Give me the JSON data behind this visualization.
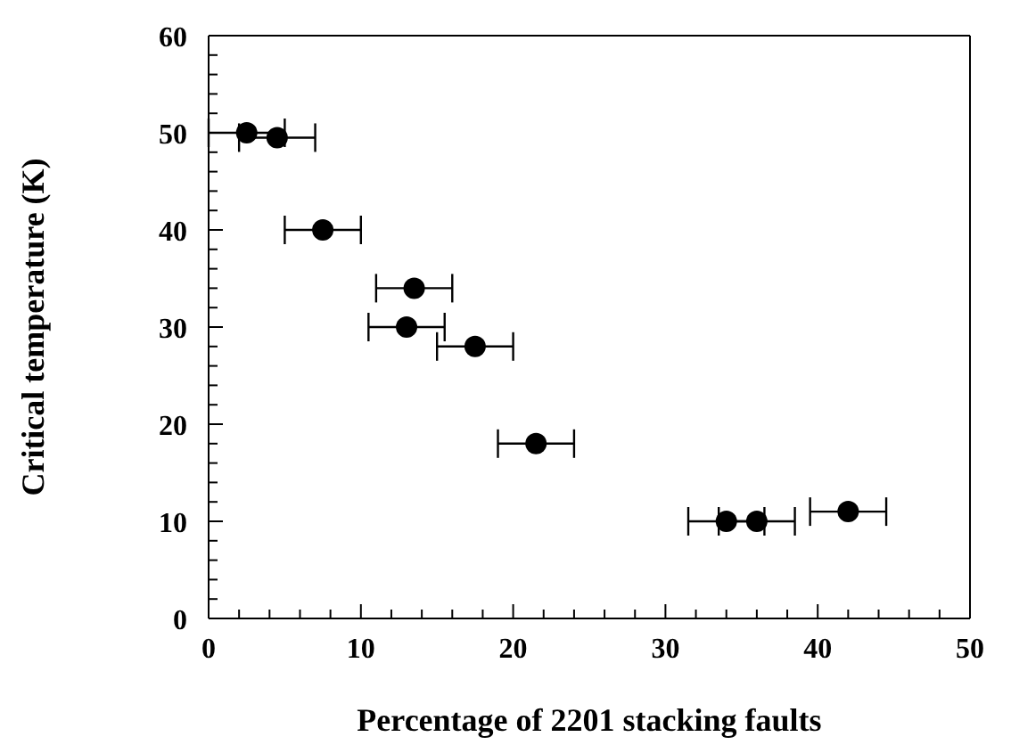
{
  "chart_data": {
    "type": "scatter",
    "xlabel": "Percentage of 2201 stacking faults",
    "ylabel": "Critical temperature (K)",
    "x": [
      2.5,
      4.5,
      7.5,
      13.5,
      13,
      17.5,
      21.5,
      34,
      36,
      42
    ],
    "values": [
      50,
      49.5,
      40,
      34,
      30,
      28,
      18,
      10,
      10,
      11
    ],
    "xerrors": [
      2.5,
      2.5,
      2.5,
      2.5,
      2.5,
      2.5,
      2.5,
      2.5,
      2.5,
      2.5
    ],
    "color": "#000000",
    "marker": "circle",
    "xlim": [
      0,
      50
    ],
    "ylim": [
      0,
      60
    ],
    "xticks": [
      0,
      {
        "value": 2,
        "label": null
      },
      {
        "value": 4,
        "label": null
      },
      {
        "value": 6,
        "label": null
      },
      {
        "value": 8,
        "label": null
      },
      10,
      {
        "value": 12,
        "label": null
      },
      {
        "value": 14,
        "label": null
      },
      {
        "value": 16,
        "label": null
      },
      {
        "value": 18,
        "label": null
      },
      20,
      {
        "value": 22,
        "label": null
      },
      {
        "value": 24,
        "label": null
      },
      {
        "value": 26,
        "label": null
      },
      {
        "value": 28,
        "label": null
      },
      30,
      {
        "value": 32,
        "label": null
      },
      {
        "value": 34,
        "label": null
      },
      {
        "value": 36,
        "label": null
      },
      {
        "value": 38,
        "label": null
      },
      40,
      {
        "value": 42,
        "label": null
      },
      {
        "value": 44,
        "label": null
      },
      {
        "value": 46,
        "label": null
      },
      {
        "value": 48,
        "label": null
      },
      50
    ],
    "yticks": [
      0,
      {
        "value": 2,
        "label": null
      },
      {
        "value": 4,
        "label": null
      },
      {
        "value": 6,
        "label": null
      },
      {
        "value": 8,
        "label": null
      },
      10,
      {
        "value": 12,
        "label": null
      },
      {
        "value": 14,
        "label": null
      },
      {
        "value": 16,
        "label": null
      },
      {
        "value": 18,
        "label": null
      },
      20,
      {
        "value": 22,
        "label": null
      },
      {
        "value": 24,
        "label": null
      },
      {
        "value": 26,
        "label": null
      },
      {
        "value": 28,
        "label": null
      },
      30,
      {
        "value": 32,
        "label": null
      },
      {
        "value": 34,
        "label": null
      },
      {
        "value": 36,
        "label": null
      },
      {
        "value": 38,
        "label": null
      },
      40,
      {
        "value": 42,
        "label": null
      },
      {
        "value": 44,
        "label": null
      },
      {
        "value": 46,
        "label": null
      },
      {
        "value": 48,
        "label": null
      },
      50,
      {
        "value": 52,
        "label": null
      },
      {
        "value": 54,
        "label": null
      },
      {
        "value": 56,
        "label": null
      },
      {
        "value": 58,
        "label": null
      },
      60
    ],
    "legend": false
  }
}
